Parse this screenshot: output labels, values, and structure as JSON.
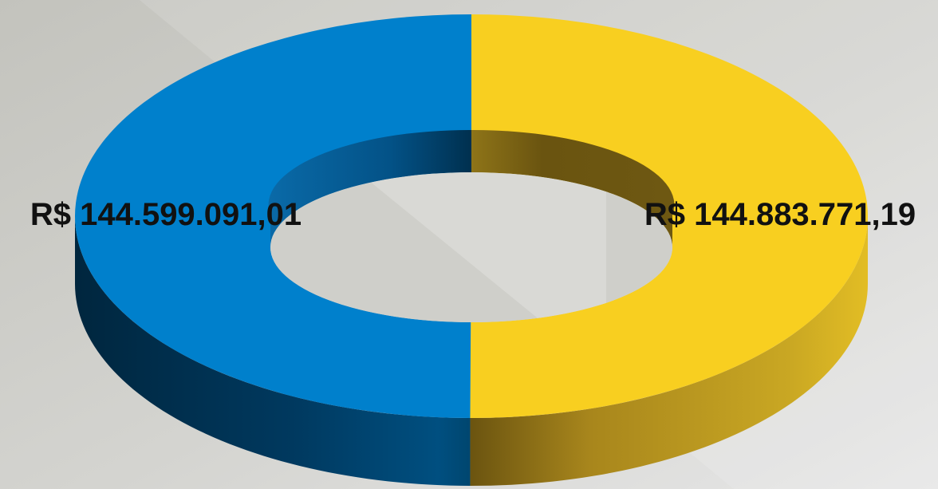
{
  "chart_data": {
    "type": "pie",
    "style": "3d-doughnut",
    "slices": [
      {
        "value": 144883771.19,
        "label": "R$ 144.883.771,19",
        "color": "#F8CF20"
      },
      {
        "value": 144599091.01,
        "label": "R$ 144.599.091,01",
        "color": "#0080CC"
      }
    ],
    "title": "",
    "legend": "none"
  }
}
